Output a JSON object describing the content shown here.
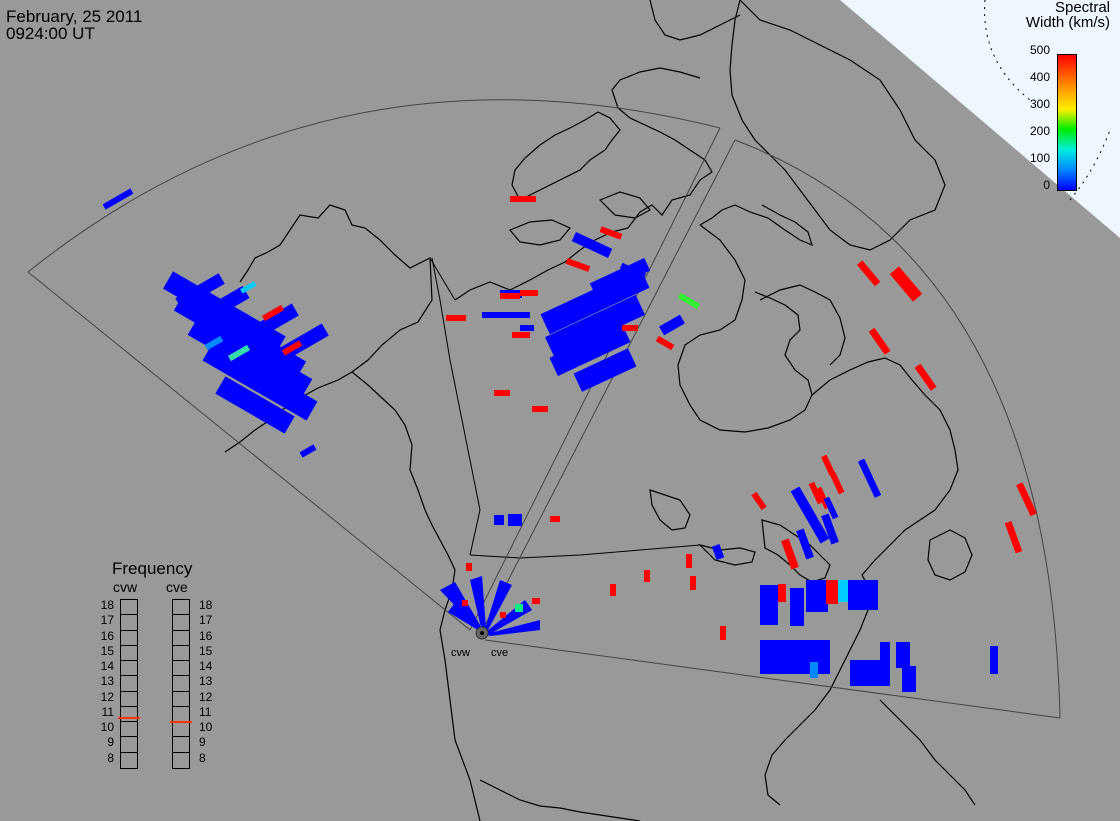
{
  "header": {
    "date": "February, 25 2011",
    "time": "0924:00 UT"
  },
  "colorbar": {
    "title_line1": "Spectral",
    "title_line2": "Width (km/s)",
    "ticks": [
      "500",
      "400",
      "300",
      "200",
      "100",
      "0"
    ],
    "colors": [
      "#ff0000",
      "#ff8800",
      "#ffee00",
      "#00ee00",
      "#00eedd",
      "#0088ff",
      "#0000ff"
    ]
  },
  "frequency_panel": {
    "title": "Frequency",
    "radars": [
      {
        "code": "cvw",
        "value_mhz": 10.8,
        "marker_color": "#ff3300"
      },
      {
        "code": "cve",
        "value_mhz": 10.5,
        "marker_color": "#ff3300"
      }
    ],
    "scale": [
      "18",
      "17",
      "16",
      "15",
      "14",
      "13",
      "12",
      "11",
      "10",
      "9",
      "8"
    ]
  },
  "stations": [
    {
      "code": "cvw"
    },
    {
      "code": "cve"
    }
  ],
  "colors": {
    "background": "#999999",
    "land_outline": "#000000",
    "polar_region": "#eef6ff",
    "fov_outline": "#555555",
    "high_width": "#ff0000",
    "low_width": "#0000ff",
    "mid_width_cyan": "#00ccff",
    "mid_width_green": "#33ee33"
  }
}
